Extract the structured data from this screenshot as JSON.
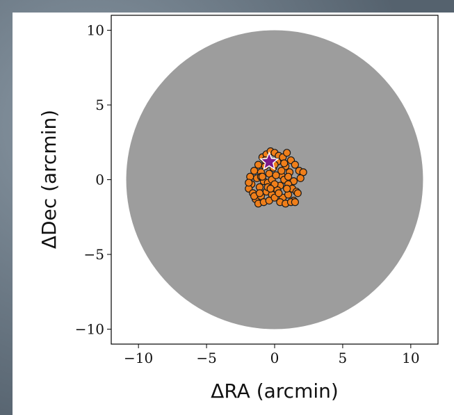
{
  "chart_data": {
    "type": "scatter",
    "xlabel": "ΔRA  (arcmin)",
    "ylabel": "ΔDec  (arcmin)",
    "xlim": [
      -12,
      12
    ],
    "ylim": [
      -11,
      11
    ],
    "xticks": [
      {
        "value": -10,
        "label": "−10"
      },
      {
        "value": -5,
        "label": "−5"
      },
      0,
      5,
      10
    ],
    "yticks": [
      {
        "value": -10,
        "label": "−10"
      },
      {
        "value": -5,
        "label": "−5"
      },
      0,
      5,
      10
    ],
    "field": {
      "x": 0,
      "y": 0,
      "x_radius": 10.9,
      "y_radius": 10,
      "color": "#8c8c8c"
    },
    "series": [
      {
        "marker": "circle",
        "color": "#f07f1a",
        "x": [
          -1.8,
          -1.5,
          -1.2,
          -0.9,
          -0.6,
          -0.3,
          0,
          0.3,
          0.6,
          0.9,
          1.2,
          1.5,
          1.8,
          -1.7,
          -1.3,
          -1.0,
          -0.7,
          -0.4,
          -0.1,
          0.2,
          0.5,
          0.8,
          1.1,
          1.4,
          -1.9,
          -1.6,
          -1.1,
          -0.8,
          -0.5,
          -0.2,
          0.1,
          0.4,
          0.7,
          1.0,
          1.3,
          1.6,
          -1.4,
          -1.0,
          -0.6,
          -0.2,
          0.2,
          0.6,
          1.0,
          1.4,
          -1.2,
          -0.8,
          -0.4,
          0,
          0.4,
          0.8,
          1.2,
          -1.0,
          -0.5,
          0,
          0.5,
          1.0,
          -0.7,
          0,
          0.7,
          2.1,
          -1.5,
          1.7,
          -0.9,
          0.3,
          1.9,
          -1.9,
          0.9,
          -0.3,
          1.5,
          -1.1
        ],
        "values": [
          0.2,
          0.6,
          1.0,
          1.5,
          1.7,
          1.9,
          1.8,
          1.6,
          1.5,
          1.8,
          1.3,
          1.0,
          0.6,
          -0.3,
          0.1,
          0.5,
          0.9,
          0.4,
          0.8,
          1.2,
          0.3,
          0.9,
          0.5,
          -0.1,
          -0.6,
          -0.9,
          -0.5,
          -0.1,
          -0.2,
          0,
          0.3,
          -0.4,
          0,
          -0.3,
          -0.6,
          -0.8,
          -1.3,
          -1.1,
          -0.8,
          -1.0,
          -0.7,
          -1.2,
          -1.0,
          -1.4,
          -1.6,
          -1.5,
          -1.4,
          -1.2,
          -1.5,
          -1.6,
          -1.5,
          0.2,
          -0.5,
          -0.3,
          0.6,
          0.2,
          1.3,
          1.0,
          1.1,
          0.5,
          -1.1,
          -0.9,
          0.2,
          -0.9,
          0.1,
          -0.2,
          -0.6,
          -0.6,
          -1.5,
          -0.9
        ]
      },
      {
        "marker": "star",
        "color": "#7b1a8a",
        "x": [
          -0.4
        ],
        "values": [
          1.2
        ]
      }
    ]
  }
}
